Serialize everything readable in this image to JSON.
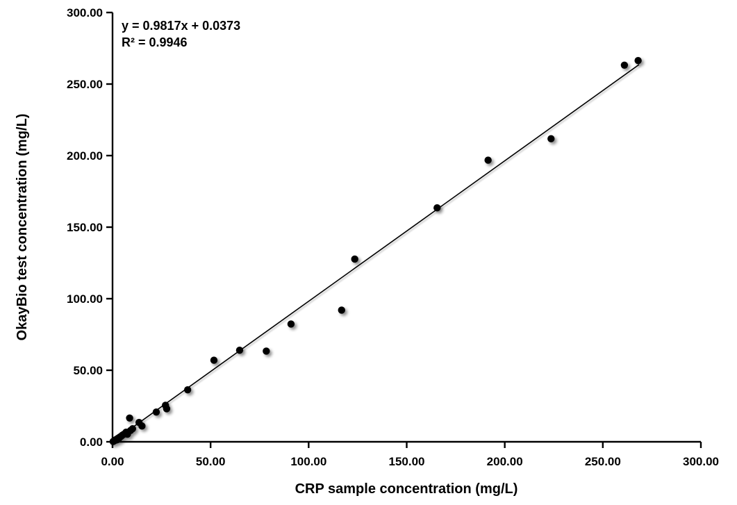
{
  "chart_data": {
    "type": "scatter",
    "title": "",
    "xlabel": "CRP sample concentration (mg/L)",
    "ylabel": "OkayBio test concentration (mg/L)",
    "xlim": [
      0,
      300
    ],
    "ylim": [
      0,
      300
    ],
    "grid": false,
    "legend_position": "none",
    "background_color": "#ffffff",
    "marker_color": "#000000",
    "trendline_color": "#000000",
    "axis_color": "#000000",
    "x_ticks": {
      "values": [
        0,
        50,
        100,
        150,
        200,
        250,
        300
      ],
      "labels": [
        "0.00",
        "50.00",
        "100.00",
        "150.00",
        "200.00",
        "250.00",
        "300.00"
      ]
    },
    "y_ticks": {
      "values": [
        0,
        50,
        100,
        150,
        200,
        250,
        300
      ],
      "labels": [
        "0.00",
        "50.00",
        "100.00",
        "150.00",
        "200.00",
        "250.00",
        "300.00"
      ]
    },
    "points": [
      [
        0.3,
        0.2
      ],
      [
        0.8,
        0.6
      ],
      [
        1.2,
        1.1
      ],
      [
        1.7,
        1.5
      ],
      [
        2.2,
        1.3
      ],
      [
        2.6,
        2.3
      ],
      [
        3.1,
        2.1
      ],
      [
        3.7,
        3.3
      ],
      [
        4.3,
        3.7
      ],
      [
        4.9,
        4.5
      ],
      [
        5.6,
        5.1
      ],
      [
        6.3,
        5.7
      ],
      [
        6.9,
        6.7
      ],
      [
        7.6,
        5.3
      ],
      [
        8.7,
        16.6
      ],
      [
        9.2,
        7.9
      ],
      [
        10.2,
        9.1
      ],
      [
        13.5,
        13.5
      ],
      [
        15.0,
        11.0
      ],
      [
        22.3,
        20.8
      ],
      [
        27.0,
        25.5
      ],
      [
        27.6,
        23.1
      ],
      [
        38.3,
        36.3
      ],
      [
        51.7,
        57.0
      ],
      [
        64.8,
        64.0
      ],
      [
        78.4,
        63.4
      ],
      [
        91.0,
        82.3
      ],
      [
        116.8,
        92.0
      ],
      [
        123.5,
        127.7
      ],
      [
        165.5,
        163.5
      ],
      [
        191.5,
        196.8
      ],
      [
        223.6,
        211.8
      ],
      [
        261.0,
        263.2
      ],
      [
        268.0,
        266.4
      ]
    ],
    "trendline": {
      "slope": 0.9817,
      "intercept": 0.0373,
      "x_start": 0,
      "x_end": 268.5
    },
    "annotations": {
      "equation": "y = 0.9817x + 0.0373",
      "r_squared": "R² = 0.9946"
    }
  }
}
